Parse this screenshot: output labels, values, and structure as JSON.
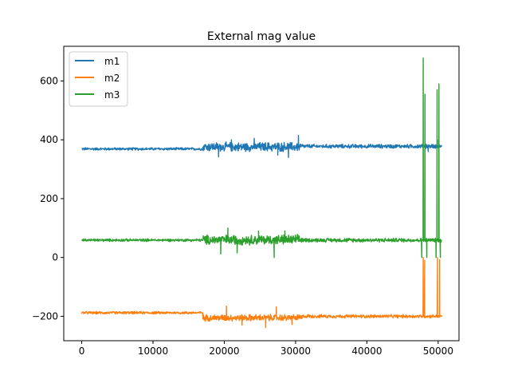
{
  "chart_data": {
    "type": "line",
    "title": "External mag value",
    "xlabel": "",
    "ylabel": "",
    "xlim": [
      -2520,
      52920
    ],
    "ylim": [
      -283,
      718
    ],
    "xticks": [
      0,
      10000,
      20000,
      30000,
      40000,
      50000
    ],
    "xtick_labels": [
      "0",
      "10000",
      "20000",
      "30000",
      "40000",
      "50000"
    ],
    "yticks": [
      -200,
      0,
      200,
      400,
      600
    ],
    "ytick_labels": [
      "−200",
      "0",
      "200",
      "400",
      "600"
    ],
    "grid": false,
    "legend_position": "upper-left",
    "series": [
      {
        "name": "m1",
        "color": "#1f77b4",
        "segments": [
          {
            "x0": 0,
            "x1": 17000,
            "base": 369,
            "amp": 4
          },
          {
            "x0": 17000,
            "x1": 31000,
            "base": 376,
            "amp": 14
          },
          {
            "x0": 31000,
            "x1": 50500,
            "base": 378,
            "amp": 6
          }
        ],
        "spikes": [
          {
            "x": 19200,
            "y": 342
          },
          {
            "x": 21000,
            "y": 400
          },
          {
            "x": 24200,
            "y": 405
          },
          {
            "x": 27500,
            "y": 348
          },
          {
            "x": 29000,
            "y": 340
          },
          {
            "x": 30400,
            "y": 415
          },
          {
            "x": 48300,
            "y": 385
          },
          {
            "x": 48600,
            "y": 360
          },
          {
            "x": 49900,
            "y": 400
          },
          {
            "x": 50400,
            "y": 380
          }
        ]
      },
      {
        "name": "m2",
        "color": "#ff7f0e",
        "segments": [
          {
            "x0": 0,
            "x1": 17000,
            "base": -188,
            "amp": 4
          },
          {
            "x0": 17000,
            "x1": 31000,
            "base": -205,
            "amp": 10
          },
          {
            "x0": 31000,
            "x1": 50500,
            "base": -200,
            "amp": 5
          }
        ],
        "spikes": [
          {
            "x": 20300,
            "y": -165
          },
          {
            "x": 22500,
            "y": -230
          },
          {
            "x": 25800,
            "y": -238
          },
          {
            "x": 27300,
            "y": -168
          },
          {
            "x": 29500,
            "y": -228
          },
          {
            "x": 47900,
            "y": 0
          },
          {
            "x": 48100,
            "y": -10
          },
          {
            "x": 49900,
            "y": 0
          },
          {
            "x": 50200,
            "y": -8
          }
        ]
      },
      {
        "name": "m3",
        "color": "#2ca02c",
        "segments": [
          {
            "x0": 0,
            "x1": 17000,
            "base": 59,
            "amp": 4
          },
          {
            "x0": 17000,
            "x1": 31000,
            "base": 60,
            "amp": 15
          },
          {
            "x0": 31000,
            "x1": 50500,
            "base": 59,
            "amp": 6
          }
        ],
        "spikes": [
          {
            "x": 19500,
            "y": 12
          },
          {
            "x": 20500,
            "y": 100
          },
          {
            "x": 21800,
            "y": 15
          },
          {
            "x": 24800,
            "y": 90
          },
          {
            "x": 27000,
            "y": 0
          },
          {
            "x": 28500,
            "y": 90
          },
          {
            "x": 47700,
            "y": 0
          },
          {
            "x": 47900,
            "y": 678
          },
          {
            "x": 48150,
            "y": 555
          },
          {
            "x": 48400,
            "y": 0
          },
          {
            "x": 49700,
            "y": 0
          },
          {
            "x": 49850,
            "y": 570
          },
          {
            "x": 50100,
            "y": 590
          },
          {
            "x": 50300,
            "y": 0
          }
        ]
      }
    ]
  }
}
